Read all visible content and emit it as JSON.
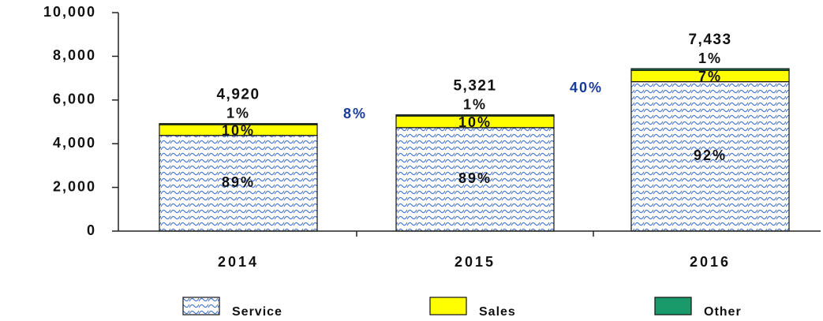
{
  "chart_data": {
    "type": "stacked_bar",
    "categories": [
      "2014",
      "2015",
      "2016"
    ],
    "series": [
      {
        "name": "Service",
        "color": "#3f6fd0",
        "values": [
          4379,
          4736,
          6838
        ],
        "value_labels": [
          "89%",
          "89%",
          "92%"
        ]
      },
      {
        "name": "Sales",
        "color": "#ffff00",
        "values": [
          492,
          532,
          520
        ],
        "value_labels": [
          "10%",
          "10%",
          "7%"
        ]
      },
      {
        "name": "Other",
        "color": "#1a9a6a",
        "values": [
          49,
          53,
          75
        ],
        "value_labels": [
          "1%",
          "1%",
          "1%"
        ]
      }
    ],
    "totals": [
      4920,
      5321,
      7433
    ],
    "total_labels": [
      "4,920",
      "5,321",
      "7,433"
    ],
    "annotations": [
      "8%",
      "40%"
    ],
    "ylim": [
      0,
      10000
    ],
    "yticks": [
      0,
      {
        "value": 2000,
        "label": "2,000"
      },
      {
        "value": 4000,
        "label": "4,000"
      },
      {
        "value": 6000,
        "label": "6,000"
      },
      {
        "value": 8000,
        "label": "8,000"
      },
      {
        "value": 10000,
        "label": "10,000"
      }
    ],
    "grid": false,
    "legend": "bottom"
  }
}
